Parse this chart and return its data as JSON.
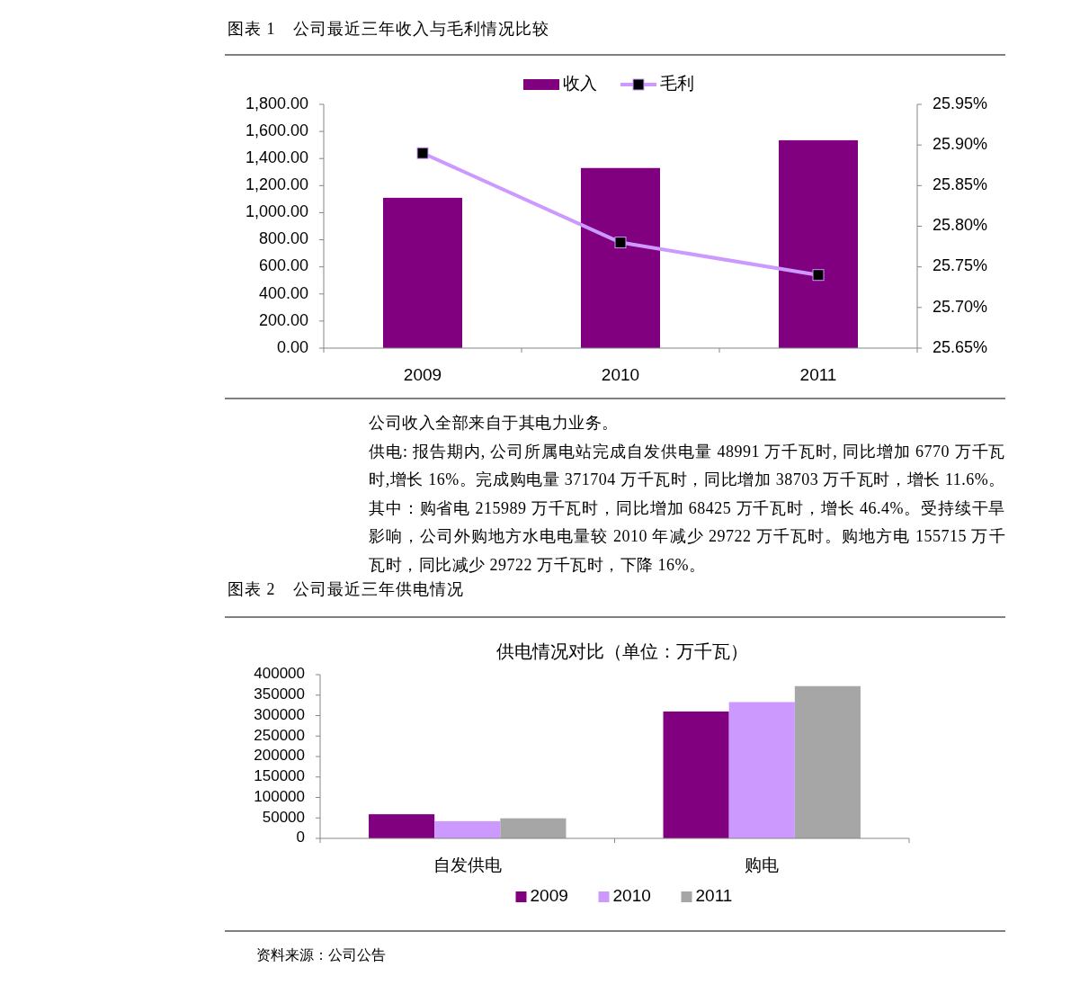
{
  "chart_data": [
    {
      "type": "bar",
      "title": "图表 1　公司最近三年收入与毛利情况比较",
      "categories": [
        "2009",
        "2010",
        "2011"
      ],
      "series": [
        {
          "name": "收入",
          "color": "#800080",
          "values": [
            1110,
            1330,
            1535
          ]
        },
        {
          "name": "毛利",
          "type": "line",
          "axis": "y2",
          "color": "#cc99ff",
          "marker": "square",
          "values": [
            25.89,
            25.78,
            25.74
          ]
        }
      ],
      "ylim": [
        0,
        1800
      ],
      "yticks": [
        {
          "value": 0,
          "label": "0.00"
        },
        {
          "value": 200,
          "label": "200.00"
        },
        {
          "value": 400,
          "label": "400.00"
        },
        {
          "value": 600,
          "label": "600.00"
        },
        {
          "value": 800,
          "label": "800.00"
        },
        {
          "value": 1000,
          "label": "1,000.00"
        },
        {
          "value": 1200,
          "label": "1,200.00"
        },
        {
          "value": 1400,
          "label": "1,400.00"
        },
        {
          "value": 1600,
          "label": "1,600.00"
        },
        {
          "value": 1800,
          "label": "1,800.00"
        }
      ],
      "y2lim": [
        25.65,
        25.95
      ],
      "y2ticks": [
        {
          "value": 25.65,
          "label": "25.65%"
        },
        {
          "value": 25.7,
          "label": "25.70%"
        },
        {
          "value": 25.75,
          "label": "25.75%"
        },
        {
          "value": 25.8,
          "label": "25.80%"
        },
        {
          "value": 25.85,
          "label": "25.85%"
        },
        {
          "value": 25.9,
          "label": "25.90%"
        },
        {
          "value": 25.95,
          "label": "25.95%"
        }
      ],
      "legend": "top",
      "grid": false,
      "annotations": [
        "公司收入全部来自于其电力业务。",
        "供电: 报告期内, 公司所属电站完成自发供电量 48991 万千瓦时, 同比增加 6770 万千瓦时,增长 16%。完成购电量 371704 万千瓦时，同比增加 38703 万千瓦时，增长 11.6%。其中：购省电 215989 万千瓦时，同比增加 68425 万千瓦时，增长 46.4%。受持续干旱影响，公司外购地方水电电量较 2010 年减少 29722 万千瓦时。购地方电 155715 万千瓦时，同比减少 29722 万千瓦时，下降 16%。"
      ]
    },
    {
      "type": "bar",
      "title": "图表 2　公司最近三年供电情况",
      "subtitle": "供电情况对比（单位：万千瓦）",
      "categories": [
        "自发供电",
        "购电"
      ],
      "series": [
        {
          "name": "2009",
          "color": "#800080",
          "values": [
            59000,
            310000
          ]
        },
        {
          "name": "2010",
          "color": "#cc99ff",
          "values": [
            42000,
            333000
          ]
        },
        {
          "name": "2011",
          "color": "#a6a6a6",
          "values": [
            49000,
            372000
          ]
        }
      ],
      "ylim": [
        0,
        400000
      ],
      "yticks": [
        0,
        50000,
        100000,
        150000,
        200000,
        250000,
        300000,
        350000,
        400000
      ],
      "legend": "bottom",
      "grid": false,
      "annotations": [
        "资料来源：公司公告"
      ]
    }
  ]
}
